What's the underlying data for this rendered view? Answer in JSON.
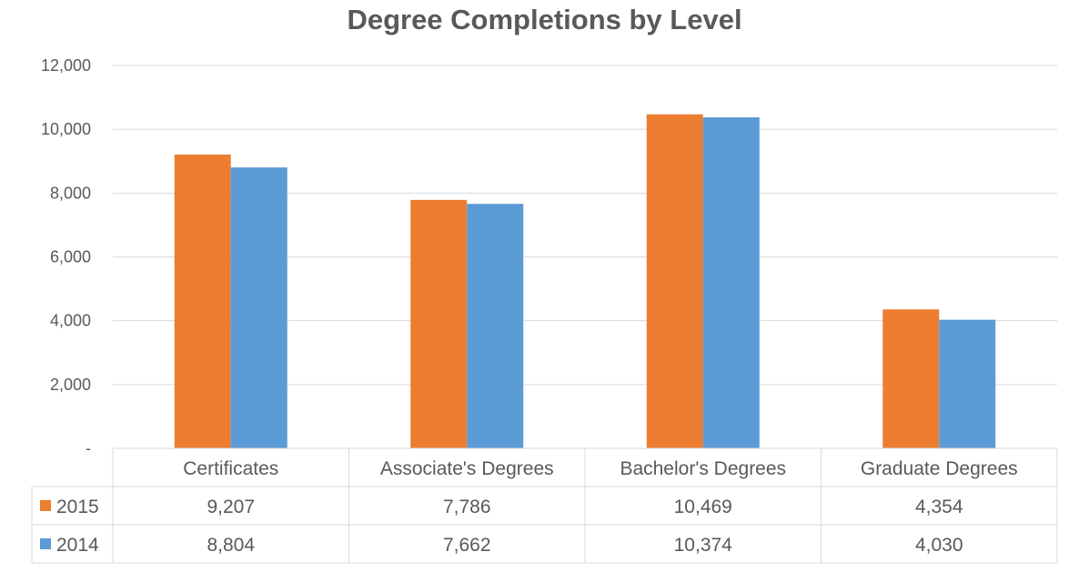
{
  "chart_data": {
    "type": "bar",
    "title": "Degree Completions by Level",
    "categories": [
      "Certificates",
      "Associate's Degrees",
      "Bachelor's Degrees",
      "Graduate Degrees"
    ],
    "series": [
      {
        "name": "2015",
        "values": [
          9207,
          7786,
          10469,
          4354
        ],
        "labels": [
          "9,207",
          "7,786",
          "10,469",
          "4,354"
        ],
        "color": "#ED7D31"
      },
      {
        "name": "2014",
        "values": [
          8804,
          7662,
          10374,
          4030
        ],
        "labels": [
          "8,804",
          "7,662",
          "10,374",
          "4,030"
        ],
        "color": "#5B9BD5"
      }
    ],
    "yticks": [
      "-",
      "2,000",
      "4,000",
      "6,000",
      "8,000",
      "10,000",
      "12,000"
    ],
    "ylim": [
      0,
      12000
    ],
    "grid": true,
    "legend": "data-table",
    "colors": {
      "grid": "#D9D9D9",
      "text": "#595959",
      "title": "#595959"
    }
  }
}
